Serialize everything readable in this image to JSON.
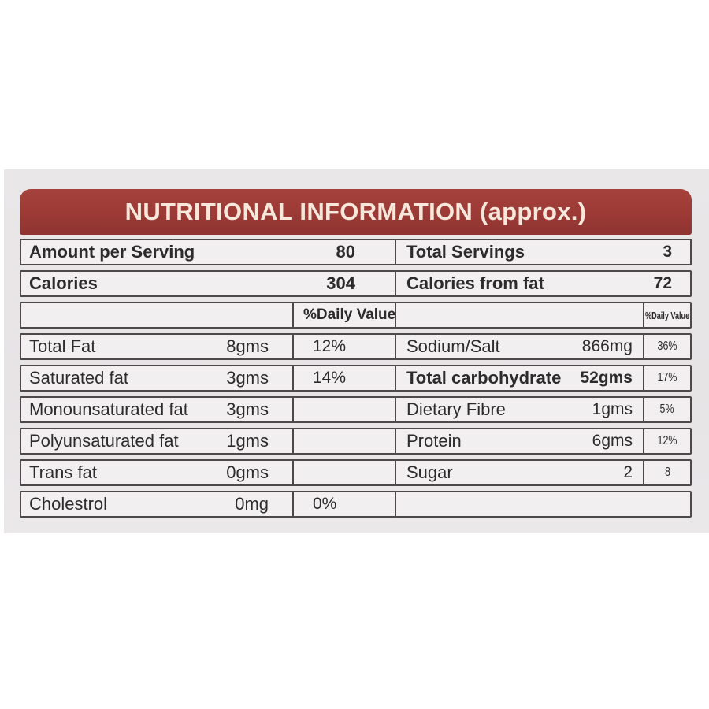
{
  "header": {
    "title": "NUTRITIONAL INFORMATION (approx.)"
  },
  "colors": {
    "header_bg": "#9e3b37",
    "header_text": "#f8e8dc",
    "row_bg": "#f1eff0",
    "label_bg": "#e7e5e6",
    "border": "#4d4849",
    "text": "#2e2b2c"
  },
  "summary_rows": [
    {
      "left_label": "Amount per Serving",
      "left_value": "80",
      "right_label": "Total Servings",
      "right_value": "3"
    },
    {
      "left_label": "Calories",
      "left_value": "304",
      "right_label": "Calories from fat",
      "right_value": "72"
    }
  ],
  "daily_value_header": {
    "left": "%Daily Value",
    "right": "%Daily Value"
  },
  "nutrient_rows": [
    {
      "left": {
        "label": "Total Fat",
        "amount": "8gms",
        "dv": "12%"
      },
      "right": {
        "label": "Sodium/Salt",
        "amount": "866mg",
        "dv": "36%"
      }
    },
    {
      "left": {
        "label": "Saturated fat",
        "amount": "3gms",
        "dv": "14%"
      },
      "right": {
        "label": "Total carbohydrate",
        "amount": "52gms",
        "dv": "17%"
      }
    },
    {
      "left": {
        "label": "Monounsaturated fat",
        "amount": "3gms",
        "dv": ""
      },
      "right": {
        "label": "Dietary Fibre",
        "amount": "1gms",
        "dv": "5%"
      }
    },
    {
      "left": {
        "label": "Polyunsaturated fat",
        "amount": "1gms",
        "dv": ""
      },
      "right": {
        "label": "Protein",
        "amount": "6gms",
        "dv": "12%"
      }
    },
    {
      "left": {
        "label": "Trans fat",
        "amount": "0gms",
        "dv": ""
      },
      "right": {
        "label": "Sugar",
        "amount": "2",
        "dv": "8"
      }
    },
    {
      "left": {
        "label": "Cholestrol",
        "amount": "0mg",
        "dv": "0%"
      },
      "right": {
        "label": "",
        "amount": "",
        "dv": ""
      }
    }
  ]
}
